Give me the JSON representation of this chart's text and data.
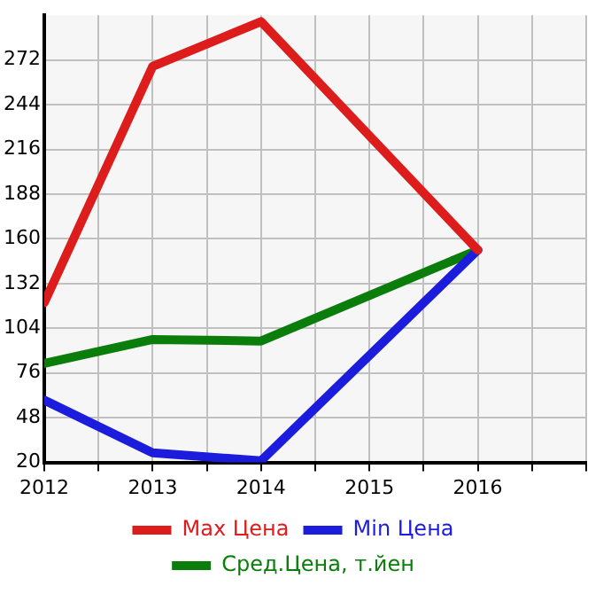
{
  "chart_data": {
    "type": "line",
    "x": [
      2012,
      2013,
      2014,
      2016
    ],
    "xlim": [
      2012,
      2017
    ],
    "xticks": [
      2012,
      {
        "value": 2012.5,
        "label": null
      },
      2013,
      {
        "value": 2013.5,
        "label": null
      },
      2014,
      {
        "value": 2014.5,
        "label": null
      },
      2015,
      {
        "value": 2015.5,
        "label": null
      },
      2016,
      {
        "value": 2016.5,
        "label": null
      },
      {
        "value": 2017,
        "label": null
      }
    ],
    "ylim": [
      20,
      300
    ],
    "yticks": [
      20,
      48,
      76,
      104,
      132,
      160,
      188,
      216,
      244,
      272
    ],
    "series": [
      {
        "name": "Max Цена",
        "color": "#dd1c1c",
        "values": [
          120,
          268,
          296,
          153
        ]
      },
      {
        "name": "Min Цена",
        "color": "#1c1cdd",
        "values": [
          59,
          26,
          21,
          153
        ]
      },
      {
        "name": "Сред.Цена, т.йен",
        "color": "#0a7d0a",
        "values": [
          82,
          97,
          96,
          153
        ]
      }
    ],
    "grid": true,
    "legend": "bottom",
    "marker": "none",
    "line_style": "solid"
  }
}
